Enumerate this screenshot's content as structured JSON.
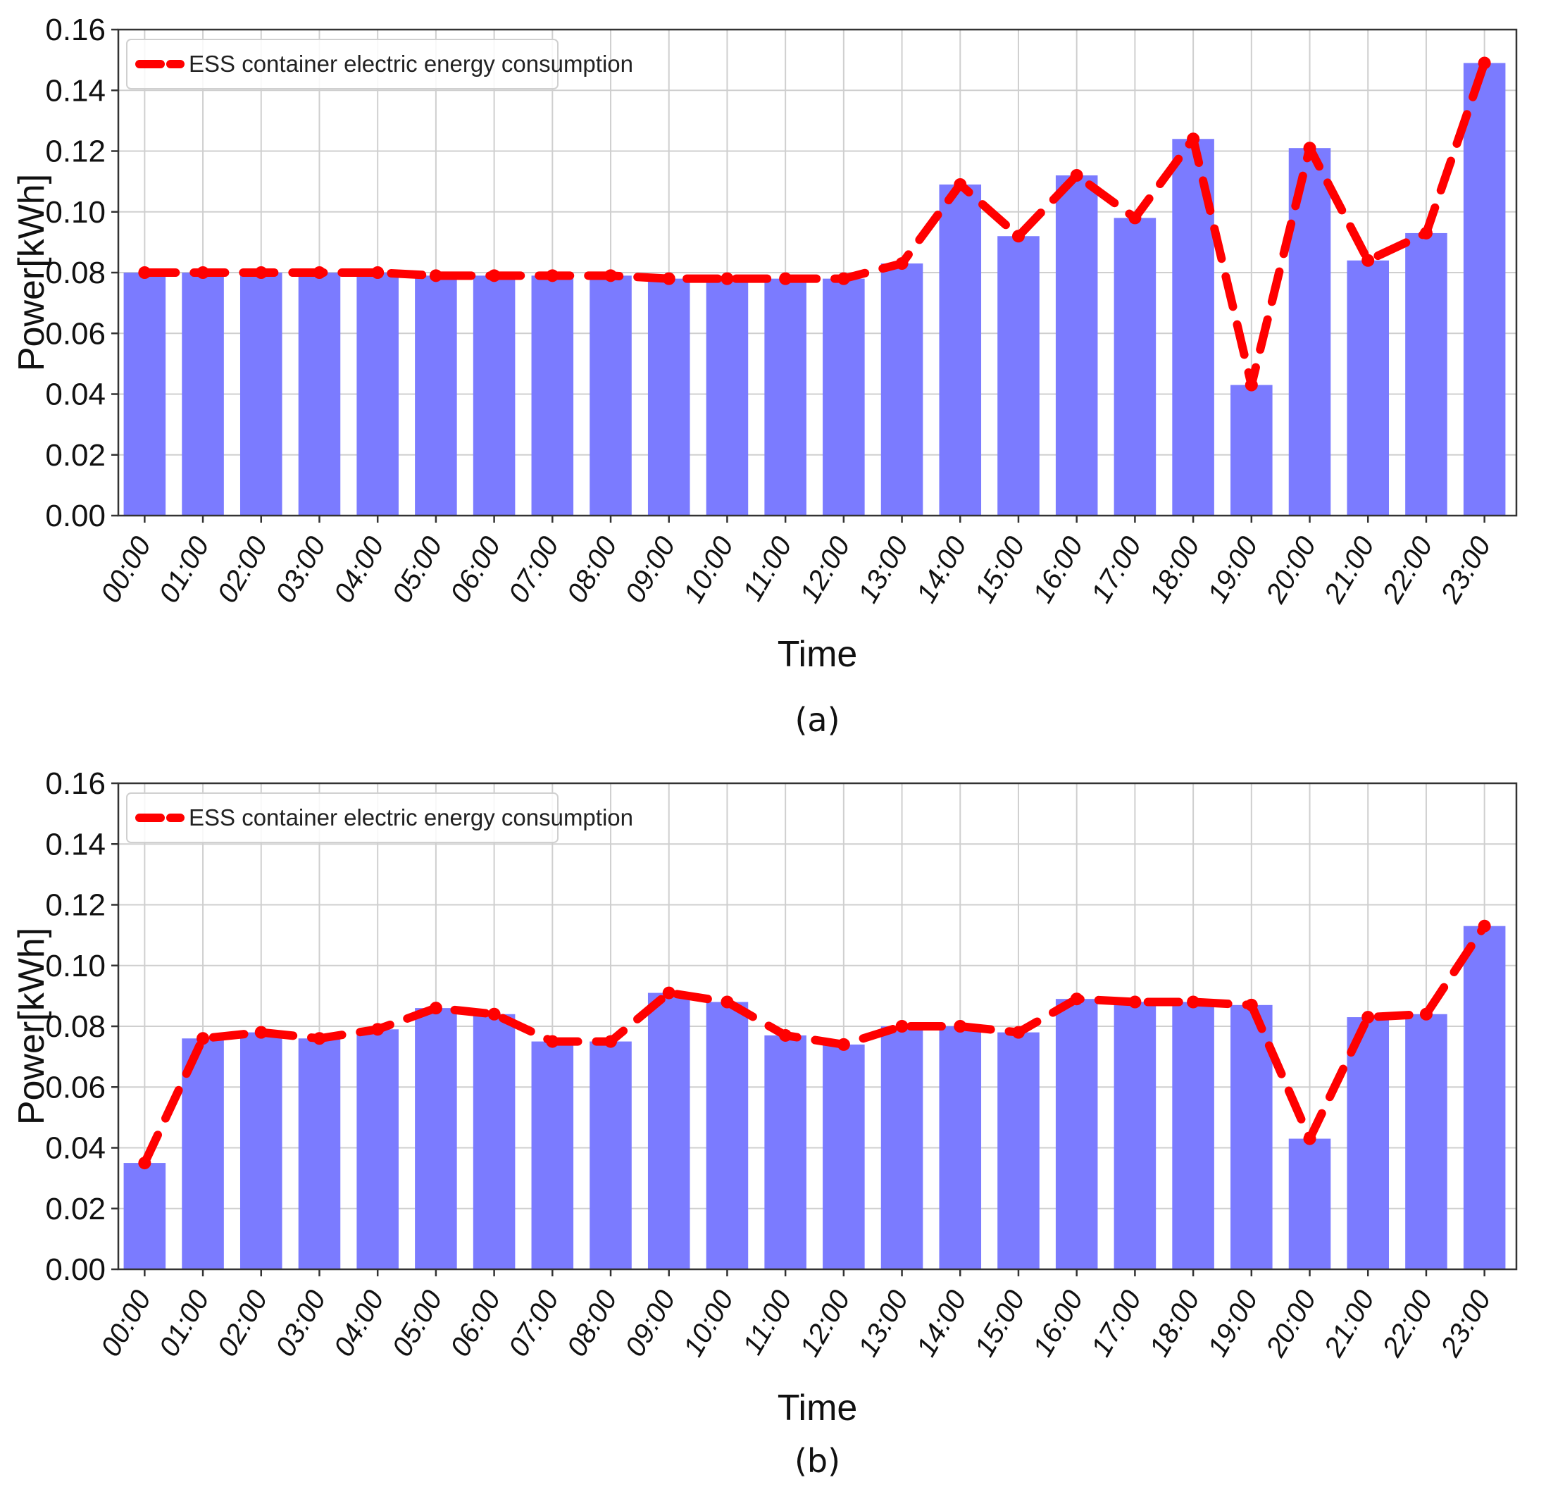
{
  "chart_data": [
    {
      "type": "bar",
      "caption": "(a)",
      "xlabel": "Time",
      "ylabel": "Power[kWh]",
      "ylim": [
        0,
        0.16
      ],
      "yticks": [
        "0.00",
        "0.02",
        "0.04",
        "0.06",
        "0.08",
        "0.10",
        "0.12",
        "0.14",
        "0.16"
      ],
      "grid": true,
      "legend": {
        "position": "top-left",
        "label": "ESS container electric energy consumption"
      },
      "categories": [
        "00:00",
        "01:00",
        "02:00",
        "03:00",
        "04:00",
        "05:00",
        "06:00",
        "07:00",
        "08:00",
        "09:00",
        "10:00",
        "11:00",
        "12:00",
        "13:00",
        "14:00",
        "15:00",
        "16:00",
        "17:00",
        "18:00",
        "19:00",
        "20:00",
        "21:00",
        "22:00",
        "23:00"
      ],
      "series": [
        {
          "kind": "bar",
          "color": "#7b7bff",
          "values": [
            0.08,
            0.08,
            0.08,
            0.08,
            0.08,
            0.079,
            0.079,
            0.079,
            0.079,
            0.078,
            0.078,
            0.078,
            0.078,
            0.083,
            0.109,
            0.092,
            0.112,
            0.098,
            0.124,
            0.043,
            0.121,
            0.084,
            0.093,
            0.149
          ]
        },
        {
          "kind": "line",
          "name": "ESS container electric energy consumption",
          "color": "#ff0000",
          "values": [
            0.08,
            0.08,
            0.08,
            0.08,
            0.08,
            0.079,
            0.079,
            0.079,
            0.079,
            0.078,
            0.078,
            0.078,
            0.078,
            0.083,
            0.109,
            0.092,
            0.112,
            0.098,
            0.124,
            0.043,
            0.121,
            0.084,
            0.093,
            0.149
          ]
        }
      ]
    },
    {
      "type": "bar",
      "caption": "(b)",
      "xlabel": "Time",
      "ylabel": "Power[kWh]",
      "ylim": [
        0,
        0.16
      ],
      "yticks": [
        "0.00",
        "0.02",
        "0.04",
        "0.06",
        "0.08",
        "0.10",
        "0.12",
        "0.14",
        "0.16"
      ],
      "grid": true,
      "legend": {
        "position": "top-left",
        "label": "ESS container electric energy consumption"
      },
      "categories": [
        "00:00",
        "01:00",
        "02:00",
        "03:00",
        "04:00",
        "05:00",
        "06:00",
        "07:00",
        "08:00",
        "09:00",
        "10:00",
        "11:00",
        "12:00",
        "13:00",
        "14:00",
        "15:00",
        "16:00",
        "17:00",
        "18:00",
        "19:00",
        "20:00",
        "21:00",
        "22:00",
        "23:00"
      ],
      "series": [
        {
          "kind": "bar",
          "color": "#7b7bff",
          "values": [
            0.035,
            0.076,
            0.078,
            0.076,
            0.079,
            0.086,
            0.084,
            0.075,
            0.075,
            0.091,
            0.088,
            0.077,
            0.074,
            0.08,
            0.08,
            0.078,
            0.089,
            0.088,
            0.088,
            0.087,
            0.043,
            0.083,
            0.084,
            0.113
          ]
        },
        {
          "kind": "line",
          "name": "ESS container electric energy consumption",
          "color": "#ff0000",
          "values": [
            0.035,
            0.076,
            0.078,
            0.076,
            0.079,
            0.086,
            0.084,
            0.075,
            0.075,
            0.091,
            0.088,
            0.077,
            0.074,
            0.08,
            0.08,
            0.078,
            0.089,
            0.088,
            0.088,
            0.087,
            0.043,
            0.083,
            0.084,
            0.113
          ]
        }
      ]
    }
  ]
}
